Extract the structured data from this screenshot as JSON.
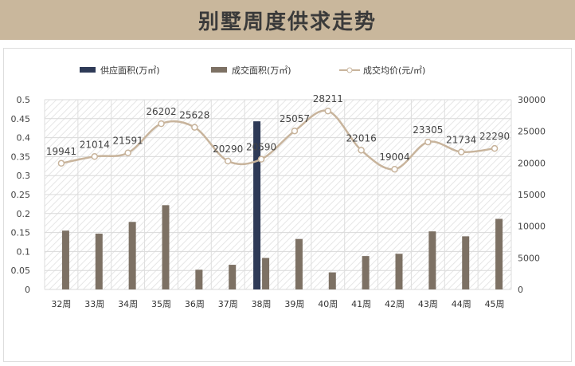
{
  "title": "别墅周度供求走势",
  "chart_data": {
    "type": "bar+line",
    "title": "别墅周度供求走势",
    "categories": [
      "32周",
      "33周",
      "34周",
      "35周",
      "36周",
      "37周",
      "38周",
      "39周",
      "40周",
      "41周",
      "42周",
      "43周",
      "44周",
      "45周"
    ],
    "series": [
      {
        "name": "供应面积(万㎡)",
        "type": "bar",
        "axis": "left",
        "color": "#2e3a57",
        "values": [
          0,
          0,
          0,
          0,
          0,
          0,
          0.443,
          0,
          0,
          0,
          0,
          0,
          0,
          0
        ]
      },
      {
        "name": "成交面积(万㎡)",
        "type": "bar",
        "axis": "left",
        "color": "#7d7164",
        "values": [
          0.155,
          0.147,
          0.178,
          0.222,
          0.052,
          0.065,
          0.083,
          0.133,
          0.045,
          0.088,
          0.094,
          0.153,
          0.14,
          0.186
        ]
      },
      {
        "name": "成交均价(元/㎡)",
        "type": "line",
        "axis": "right",
        "color": "#c8b49c",
        "values": [
          19941,
          21014,
          21591,
          26202,
          25628,
          20290,
          20590,
          25057,
          28211,
          22016,
          19004,
          23305,
          21734,
          22290
        ]
      }
    ],
    "yleft": {
      "ylim": [
        0,
        0.5
      ],
      "ticks": [
        "0",
        "0.05",
        "0.1",
        "0.15",
        "0.2",
        "0.25",
        "0.3",
        "0.35",
        "0.4",
        "0.45",
        "0.5"
      ]
    },
    "yright": {
      "ylim": [
        0,
        30000
      ],
      "ticks": [
        "0",
        "5000",
        "10000",
        "15000",
        "20000",
        "25000",
        "30000"
      ]
    },
    "legend": "top",
    "grid": true
  }
}
